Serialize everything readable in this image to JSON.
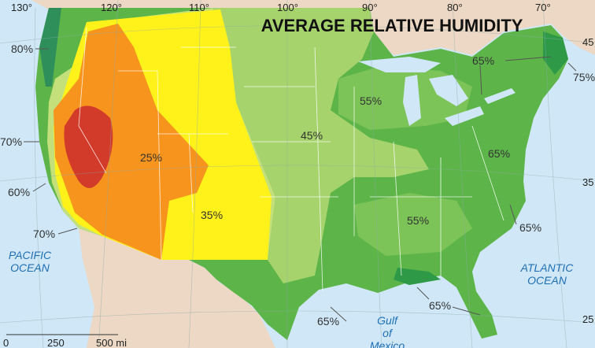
{
  "title": "AVERAGE RELATIVE HUMIDITY",
  "longitudes": [
    "130°",
    "120°",
    "110°",
    "100°",
    "90°",
    "80°",
    "70°"
  ],
  "latitudes": [
    "45",
    "35",
    "25"
  ],
  "contour_labels": [
    "80%",
    "70%",
    "60%",
    "70%",
    "25%",
    "35%",
    "45%",
    "55%",
    "65%",
    "75%",
    "55%",
    "65%",
    "65%",
    "65%",
    "65%"
  ],
  "water_labels": [
    {
      "lines": [
        "PACIFIC",
        "OCEAN"
      ]
    },
    {
      "lines": [
        "ATLANTIC",
        "OCEAN"
      ]
    },
    {
      "lines": [
        "Gulf",
        "of",
        "Mexico"
      ]
    }
  ],
  "scale": [
    "0",
    "250",
    "500 mi"
  ]
}
